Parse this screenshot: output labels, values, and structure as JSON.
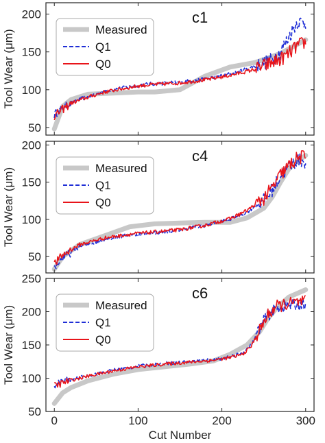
{
  "chart_data": [
    {
      "type": "line",
      "panel_label": "c1",
      "ylabel": "Tool Wear (μm)",
      "xlabel": "",
      "xlim": [
        -10,
        310
      ],
      "ylim": [
        40,
        215
      ],
      "xticks": [
        0,
        100,
        200,
        300
      ],
      "yticks": [
        50,
        100,
        150,
        200
      ],
      "legend_position": "top-left",
      "series": [
        {
          "name": "Measured",
          "style": "thick-solid",
          "color": "#c8c8c8",
          "x": [
            0,
            10,
            20,
            40,
            60,
            80,
            100,
            120,
            150,
            180,
            210,
            240,
            270,
            300
          ],
          "y": [
            48,
            78,
            87,
            94,
            95,
            96,
            97,
            97,
            100,
            118,
            130,
            136,
            148,
            166
          ]
        },
        {
          "name": "Q1",
          "style": "dashed",
          "color": "#1f2ed6",
          "x": [
            0,
            10,
            20,
            40,
            60,
            80,
            100,
            120,
            150,
            180,
            210,
            240,
            260,
            270,
            280,
            290,
            300
          ],
          "y": [
            67,
            76,
            83,
            91,
            98,
            102,
            106,
            108,
            110,
            114,
            121,
            131,
            140,
            150,
            170,
            190,
            188
          ]
        },
        {
          "name": "Q0",
          "style": "solid",
          "color": "#e8141a",
          "x": [
            0,
            10,
            20,
            40,
            60,
            80,
            100,
            120,
            150,
            180,
            210,
            240,
            260,
            270,
            280,
            290,
            300
          ],
          "y": [
            65,
            74,
            82,
            90,
            97,
            101,
            105,
            107,
            109,
            113,
            119,
            127,
            136,
            140,
            148,
            158,
            163
          ]
        }
      ]
    },
    {
      "type": "line",
      "panel_label": "c4",
      "ylabel": "Tool Wear (μm)",
      "xlabel": "",
      "xlim": [
        -10,
        310
      ],
      "ylim": [
        28,
        205
      ],
      "xticks": [
        0,
        100,
        200,
        300
      ],
      "yticks": [
        50,
        100,
        150,
        200
      ],
      "legend_position": "top-left",
      "series": [
        {
          "name": "Measured",
          "style": "thick-solid",
          "color": "#c8c8c8",
          "x": [
            0,
            10,
            30,
            60,
            90,
            120,
            150,
            180,
            210,
            230,
            250,
            260,
            270,
            280,
            290,
            300
          ],
          "y": [
            33,
            50,
            66,
            78,
            90,
            94,
            95,
            96,
            96,
            102,
            115,
            130,
            150,
            168,
            178,
            186
          ]
        },
        {
          "name": "Q1",
          "style": "dashed",
          "color": "#1f2ed6",
          "x": [
            0,
            10,
            30,
            60,
            90,
            120,
            150,
            180,
            210,
            230,
            250,
            260,
            270,
            280,
            290,
            300
          ],
          "y": [
            36,
            48,
            63,
            73,
            79,
            82,
            86,
            92,
            100,
            110,
            125,
            140,
            158,
            170,
            180,
            178
          ]
        },
        {
          "name": "Q0",
          "style": "solid",
          "color": "#e8141a",
          "x": [
            0,
            10,
            30,
            60,
            90,
            120,
            150,
            180,
            210,
            230,
            250,
            260,
            270,
            280,
            290,
            300
          ],
          "y": [
            40,
            52,
            66,
            75,
            80,
            83,
            86,
            92,
            101,
            112,
            128,
            142,
            160,
            172,
            182,
            185
          ]
        }
      ]
    },
    {
      "type": "line",
      "panel_label": "c6",
      "ylabel": "Tool Wear (μm)",
      "xlabel": "Cut Number",
      "xlim": [
        -10,
        310
      ],
      "ylim": [
        50,
        250
      ],
      "xticks": [
        0,
        100,
        200,
        300
      ],
      "yticks": [
        50,
        100,
        150,
        200,
        250
      ],
      "legend_position": "top-left",
      "series": [
        {
          "name": "Measured",
          "style": "thick-solid",
          "color": "#c8c8c8",
          "x": [
            0,
            10,
            20,
            40,
            70,
            100,
            130,
            160,
            190,
            210,
            230,
            245,
            255,
            265,
            280,
            300
          ],
          "y": [
            62,
            78,
            86,
            96,
            106,
            113,
            117,
            121,
            126,
            136,
            150,
            170,
            190,
            205,
            222,
            233
          ]
        },
        {
          "name": "Q1",
          "style": "dashed",
          "color": "#1f2ed6",
          "x": [
            0,
            10,
            20,
            40,
            70,
            100,
            130,
            160,
            190,
            210,
            225,
            235,
            245,
            255,
            265,
            280,
            300
          ],
          "y": [
            90,
            95,
            98,
            104,
            112,
            118,
            122,
            125,
            128,
            132,
            138,
            150,
            175,
            195,
            205,
            210,
            212
          ]
        },
        {
          "name": "Q0",
          "style": "solid",
          "color": "#e8141a",
          "x": [
            0,
            10,
            20,
            40,
            70,
            100,
            130,
            160,
            190,
            210,
            225,
            235,
            245,
            255,
            265,
            280,
            300
          ],
          "y": [
            88,
            93,
            97,
            103,
            111,
            117,
            121,
            124,
            127,
            131,
            136,
            148,
            172,
            195,
            208,
            212,
            215
          ]
        }
      ]
    }
  ]
}
